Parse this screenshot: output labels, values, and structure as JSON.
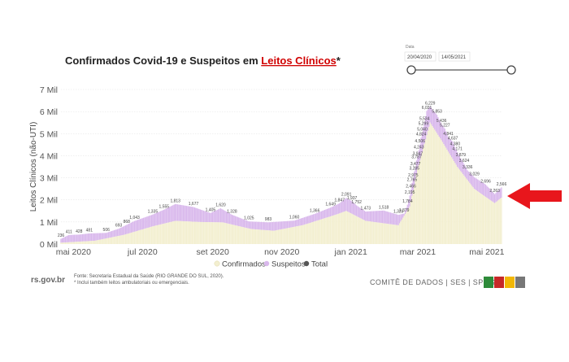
{
  "title_prefix": "Confirmados Covid-19 e Suspeitos em ",
  "title_link": "Leitos Clínicos",
  "title_suffix": "*",
  "date_filter": {
    "label": "Data",
    "start": "20/04/2020",
    "end": "14/05/2021"
  },
  "footnote_source": "Fonte: Secretaria Estadual da Saúde (RIO GRANDE DO SUL, 2020).",
  "footnote_note": "* Inclui também leitos ambulatoriais ou emergenciais.",
  "site_logo": "rs.gov.br",
  "footer_brand": "COMITÊ DE DADOS  |  SES  |  SPGG",
  "brand_colors": [
    "#2e8b3a",
    "#c62828",
    "#f2b705",
    "#777777"
  ],
  "arrow_color": "#e8161c",
  "chart_data": {
    "type": "bar",
    "title": "Confirmados Covid-19 e Suspeitos em Leitos Clínicos*",
    "ylabel": "Leitos Clínicos (não-UTI)",
    "ylim": [
      0,
      7000
    ],
    "y_ticks": [
      0,
      1000,
      2000,
      3000,
      4000,
      5000,
      6000,
      7000
    ],
    "y_tick_labels": [
      "0 Mil",
      "1 Mil",
      "2 Mil",
      "3 Mil",
      "4 Mil",
      "5 Mil",
      "6 Mil",
      "7 Mil"
    ],
    "x_ticks": [
      {
        "label": "mai 2020",
        "date": "2020-05-01"
      },
      {
        "label": "jul 2020",
        "date": "2020-07-01"
      },
      {
        "label": "set 2020",
        "date": "2020-09-01"
      },
      {
        "label": "nov 2020",
        "date": "2020-11-01"
      },
      {
        "label": "jan 2021",
        "date": "2021-01-01"
      },
      {
        "label": "mar 2021",
        "date": "2021-03-01"
      },
      {
        "label": "mai 2021",
        "date": "2021-05-01"
      }
    ],
    "x_range": [
      "2020-04-20",
      "2021-05-14"
    ],
    "colors": {
      "Confirmados": "#f3efd0",
      "Suspeitos": "#d9b8ec",
      "Total": "#555555"
    },
    "legend": [
      {
        "name": "Confirmados",
        "color": "#f3efd0"
      },
      {
        "name": "Suspeitos",
        "color": "#d9b8ec"
      },
      {
        "name": "Total",
        "color": "#555555"
      }
    ],
    "legend_placement": "bottom",
    "total_key_points": [
      {
        "date": "2020-04-20",
        "total": 236
      },
      {
        "date": "2020-04-27",
        "total": 411
      },
      {
        "date": "2020-05-06",
        "total": 428
      },
      {
        "date": "2020-05-15",
        "total": 481
      },
      {
        "date": "2020-05-30",
        "total": 506
      },
      {
        "date": "2020-06-10",
        "total": 693
      },
      {
        "date": "2020-06-17",
        "total": 868
      },
      {
        "date": "2020-06-24",
        "total": 1043
      },
      {
        "date": "2020-07-10",
        "total": 1335
      },
      {
        "date": "2020-07-20",
        "total": 1555
      },
      {
        "date": "2020-07-30",
        "total": 1813
      },
      {
        "date": "2020-08-15",
        "total": 1677
      },
      {
        "date": "2020-08-30",
        "total": 1405
      },
      {
        "date": "2020-09-08",
        "total": 1620
      },
      {
        "date": "2020-09-18",
        "total": 1328
      },
      {
        "date": "2020-10-03",
        "total": 1025
      },
      {
        "date": "2020-10-20",
        "total": 983
      },
      {
        "date": "2020-11-12",
        "total": 1060
      },
      {
        "date": "2020-11-30",
        "total": 1366
      },
      {
        "date": "2020-12-14",
        "total": 1649
      },
      {
        "date": "2020-12-22",
        "total": 1847
      },
      {
        "date": "2020-12-28",
        "total": 2091
      },
      {
        "date": "2021-01-02",
        "total": 1937
      },
      {
        "date": "2021-01-06",
        "total": 1752
      },
      {
        "date": "2021-01-14",
        "total": 1473
      },
      {
        "date": "2021-01-30",
        "total": 1518
      },
      {
        "date": "2021-02-12",
        "total": 1323
      },
      {
        "date": "2021-02-17",
        "total": 1379
      },
      {
        "date": "2021-02-20",
        "total": 1784
      },
      {
        "date": "2021-02-22",
        "total": 2195
      },
      {
        "date": "2021-02-23",
        "total": 2466
      },
      {
        "date": "2021-02-24",
        "total": 2765
      },
      {
        "date": "2021-02-25",
        "total": 2975
      },
      {
        "date": "2021-02-26",
        "total": 3285
      },
      {
        "date": "2021-02-27",
        "total": 3477
      },
      {
        "date": "2021-02-28",
        "total": 3787
      },
      {
        "date": "2021-03-01",
        "total": 3947
      },
      {
        "date": "2021-03-02",
        "total": 4243
      },
      {
        "date": "2021-03-03",
        "total": 4506
      },
      {
        "date": "2021-03-04",
        "total": 4824
      },
      {
        "date": "2021-03-05",
        "total": 5040
      },
      {
        "date": "2021-03-06",
        "total": 5299
      },
      {
        "date": "2021-03-07",
        "total": 5534
      },
      {
        "date": "2021-03-09",
        "total": 6031
      },
      {
        "date": "2021-03-12",
        "total": 6229
      },
      {
        "date": "2021-03-18",
        "total": 5853
      },
      {
        "date": "2021-03-22",
        "total": 5436
      },
      {
        "date": "2021-03-25",
        "total": 5227
      },
      {
        "date": "2021-03-28",
        "total": 4841
      },
      {
        "date": "2021-04-01",
        "total": 4637
      },
      {
        "date": "2021-04-03",
        "total": 4380
      },
      {
        "date": "2021-04-05",
        "total": 4171
      },
      {
        "date": "2021-04-08",
        "total": 3879
      },
      {
        "date": "2021-04-11",
        "total": 3624
      },
      {
        "date": "2021-04-14",
        "total": 3336
      },
      {
        "date": "2021-04-20",
        "total": 3029
      },
      {
        "date": "2021-04-30",
        "total": 2696
      },
      {
        "date": "2021-05-08",
        "total": 2263
      },
      {
        "date": "2021-05-14",
        "total": 2566
      }
    ],
    "confirmed_key_points": [
      {
        "date": "2020-04-20",
        "value": 60
      },
      {
        "date": "2020-05-20",
        "value": 150
      },
      {
        "date": "2020-06-15",
        "value": 420
      },
      {
        "date": "2020-07-10",
        "value": 800
      },
      {
        "date": "2020-07-30",
        "value": 1050
      },
      {
        "date": "2020-08-20",
        "value": 1000
      },
      {
        "date": "2020-09-10",
        "value": 980
      },
      {
        "date": "2020-10-05",
        "value": 680
      },
      {
        "date": "2020-10-25",
        "value": 600
      },
      {
        "date": "2020-11-20",
        "value": 860
      },
      {
        "date": "2020-12-20",
        "value": 1350
      },
      {
        "date": "2020-12-28",
        "value": 1500
      },
      {
        "date": "2021-01-14",
        "value": 1050
      },
      {
        "date": "2021-02-12",
        "value": 850
      },
      {
        "date": "2021-02-22",
        "value": 1700
      },
      {
        "date": "2021-03-01",
        "value": 3400
      },
      {
        "date": "2021-03-12",
        "value": 5500
      },
      {
        "date": "2021-03-22",
        "value": 4700
      },
      {
        "date": "2021-04-05",
        "value": 3500
      },
      {
        "date": "2021-04-20",
        "value": 2500
      },
      {
        "date": "2021-05-08",
        "value": 1850
      },
      {
        "date": "2021-05-14",
        "value": 2100
      }
    ],
    "annotations": [
      {
        "type": "arrow",
        "color": "#e8161c",
        "points_to": "2021-05-14"
      }
    ]
  }
}
